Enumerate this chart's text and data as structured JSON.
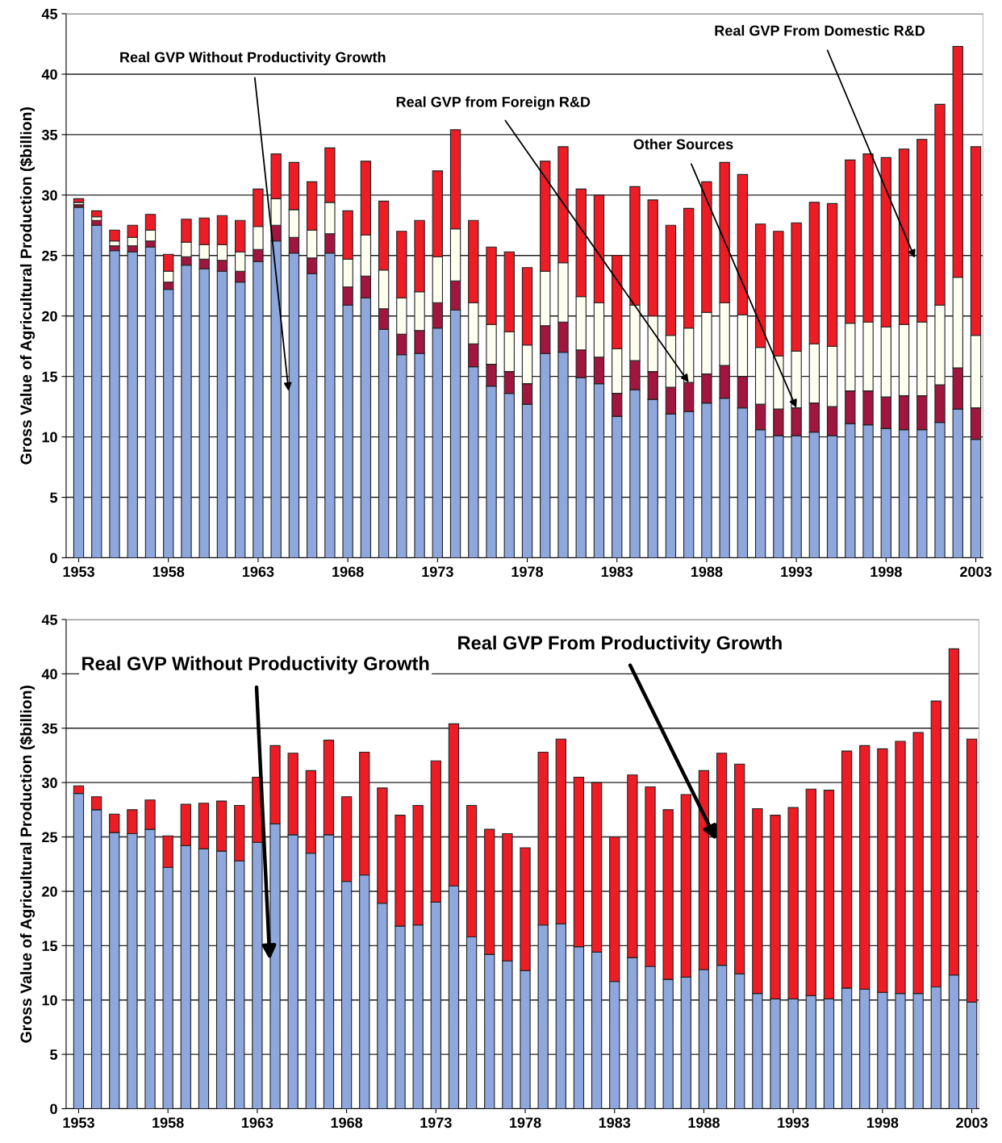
{
  "chart_data": [
    {
      "type": "bar",
      "stacked": true,
      "ylabel": "Gross Value of Agricultural Production ($billion)",
      "x": [
        1953,
        1954,
        1955,
        1956,
        1957,
        1958,
        1959,
        1960,
        1961,
        1962,
        1963,
        1964,
        1965,
        1966,
        1967,
        1968,
        1969,
        1970,
        1971,
        1972,
        1973,
        1974,
        1975,
        1976,
        1977,
        1978,
        1979,
        1980,
        1981,
        1982,
        1983,
        1984,
        1985,
        1986,
        1987,
        1988,
        1989,
        1990,
        1991,
        1992,
        1993,
        1994,
        1995,
        1996,
        1997,
        1998,
        1999,
        2000,
        2001,
        2002,
        2003
      ],
      "xlim": [
        1952.3,
        2003.4
      ],
      "xticks": [
        1953,
        1958,
        1963,
        1968,
        1973,
        1978,
        1983,
        1988,
        1993,
        1998,
        2003
      ],
      "ylim": [
        0,
        45
      ],
      "yticks": [
        0,
        5,
        10,
        15,
        20,
        25,
        30,
        35,
        40,
        45
      ],
      "grid": "y",
      "series": [
        {
          "color": "#8ea7dd",
          "values": [
            29.0,
            27.5,
            25.4,
            25.3,
            25.7,
            22.2,
            24.2,
            23.9,
            23.7,
            22.8,
            24.5,
            26.2,
            25.2,
            23.5,
            25.2,
            20.9,
            21.5,
            18.9,
            16.8,
            16.9,
            19.0,
            20.5,
            15.8,
            14.2,
            13.6,
            12.7,
            16.9,
            17.0,
            14.9,
            14.4,
            11.7,
            13.9,
            13.1,
            11.9,
            12.1,
            12.8,
            13.2,
            12.4,
            10.6,
            10.1,
            10.1,
            10.4,
            10.1,
            11.1,
            11.0,
            10.7,
            10.6,
            10.6,
            11.2,
            12.3,
            9.8
          ]
        },
        {
          "color": "#a0163e",
          "values": [
            0.2,
            0.4,
            0.4,
            0.5,
            0.5,
            0.6,
            0.7,
            0.8,
            0.9,
            0.9,
            1.0,
            1.3,
            1.3,
            1.3,
            1.6,
            1.5,
            1.8,
            1.7,
            1.7,
            1.9,
            2.1,
            2.4,
            1.9,
            1.8,
            1.8,
            1.7,
            2.3,
            2.5,
            2.3,
            2.2,
            1.9,
            2.4,
            2.3,
            2.2,
            2.4,
            2.4,
            2.7,
            2.6,
            2.1,
            2.2,
            2.3,
            2.4,
            2.4,
            2.7,
            2.8,
            2.6,
            2.8,
            2.8,
            3.1,
            3.4,
            2.6
          ]
        },
        {
          "color": "#fffff0",
          "values": [
            0.2,
            0.3,
            0.4,
            0.7,
            0.9,
            0.9,
            1.2,
            1.2,
            1.3,
            1.6,
            1.9,
            2.2,
            2.3,
            2.3,
            2.6,
            2.3,
            3.4,
            3.2,
            3.0,
            3.2,
            3.8,
            4.3,
            3.4,
            3.3,
            3.3,
            3.2,
            4.5,
            4.9,
            4.4,
            4.5,
            3.7,
            4.6,
            4.6,
            4.3,
            4.5,
            5.1,
            5.2,
            5.1,
            4.7,
            4.4,
            4.7,
            4.9,
            5.0,
            5.6,
            5.7,
            5.8,
            5.9,
            6.1,
            6.6,
            7.5,
            6.0
          ]
        },
        {
          "color": "#ee1c25",
          "values": [
            0.3,
            0.5,
            0.9,
            1.0,
            1.3,
            1.4,
            1.9,
            2.2,
            2.4,
            2.6,
            3.1,
            3.7,
            3.9,
            4.0,
            4.5,
            4.0,
            6.1,
            5.7,
            5.5,
            5.9,
            7.1,
            8.2,
            6.8,
            6.4,
            6.6,
            6.4,
            9.1,
            9.6,
            8.9,
            8.9,
            7.7,
            9.8,
            9.6,
            9.1,
            9.9,
            10.8,
            11.6,
            11.6,
            10.2,
            10.3,
            10.6,
            11.7,
            11.8,
            13.5,
            13.9,
            14.0,
            14.5,
            15.1,
            16.6,
            19.1,
            15.6
          ]
        }
      ],
      "annotations": [
        {
          "text": "Real GVP Without Productivity Growth",
          "x": 1964.7,
          "y": 13.8
        },
        {
          "text": "Real GVP from Foreign R&D",
          "x": 1987,
          "y": 14.5
        },
        {
          "text": "Other Sources",
          "x": 1993,
          "y": 12.4
        },
        {
          "text": "Real GVP From Domestic R&D",
          "x": 1999.6,
          "y": 24.8
        }
      ]
    },
    {
      "type": "bar",
      "stacked": true,
      "ylabel": "Gross Value of Agricultural Production ($billion)",
      "x": [
        1953,
        1954,
        1955,
        1956,
        1957,
        1958,
        1959,
        1960,
        1961,
        1962,
        1963,
        1964,
        1965,
        1966,
        1967,
        1968,
        1969,
        1970,
        1971,
        1972,
        1973,
        1974,
        1975,
        1976,
        1977,
        1978,
        1979,
        1980,
        1981,
        1982,
        1983,
        1984,
        1985,
        1986,
        1987,
        1988,
        1989,
        1990,
        1991,
        1992,
        1993,
        1994,
        1995,
        1996,
        1997,
        1998,
        1999,
        2000,
        2001,
        2002,
        2003
      ],
      "xlim": [
        1952.3,
        2003.4
      ],
      "xticks": [
        1953,
        1958,
        1963,
        1968,
        1973,
        1978,
        1983,
        1988,
        1993,
        1998,
        2003
      ],
      "ylim": [
        0,
        45
      ],
      "yticks": [
        0,
        5,
        10,
        15,
        20,
        25,
        30,
        35,
        40,
        45
      ],
      "grid": "y",
      "series": [
        {
          "color": "#8ea7dd",
          "values": [
            29.0,
            27.5,
            25.4,
            25.3,
            25.7,
            22.2,
            24.2,
            23.9,
            23.7,
            22.8,
            24.5,
            26.2,
            25.2,
            23.5,
            25.2,
            20.9,
            21.5,
            18.9,
            16.8,
            16.9,
            19.0,
            20.5,
            15.8,
            14.2,
            13.6,
            12.7,
            16.9,
            17.0,
            14.9,
            14.4,
            11.7,
            13.9,
            13.1,
            11.9,
            12.1,
            12.8,
            13.2,
            12.4,
            10.6,
            10.1,
            10.1,
            10.4,
            10.1,
            11.1,
            11.0,
            10.7,
            10.6,
            10.6,
            11.2,
            12.3,
            9.8
          ]
        },
        {
          "color": "#ee1c25",
          "values": [
            0.7,
            1.2,
            1.7,
            2.2,
            2.7,
            2.9,
            3.8,
            4.2,
            4.6,
            5.1,
            6.0,
            7.2,
            7.5,
            7.6,
            8.7,
            7.8,
            11.3,
            10.6,
            10.2,
            11.0,
            13.0,
            14.9,
            12.1,
            11.5,
            11.7,
            11.3,
            15.9,
            17.0,
            15.6,
            15.6,
            13.3,
            16.8,
            16.5,
            15.6,
            16.8,
            18.3,
            19.5,
            19.3,
            17.0,
            16.9,
            17.6,
            19.0,
            19.2,
            21.8,
            22.4,
            22.4,
            23.2,
            24.0,
            26.3,
            30.0,
            24.2
          ]
        }
      ],
      "annotations": [
        {
          "text": "Real GVP Without Productivity Growth",
          "x": 1963.7,
          "y": 13.7
        },
        {
          "text": "Real GVP From Productivity Growth",
          "x": 1988.7,
          "y": 24.7
        }
      ]
    }
  ]
}
